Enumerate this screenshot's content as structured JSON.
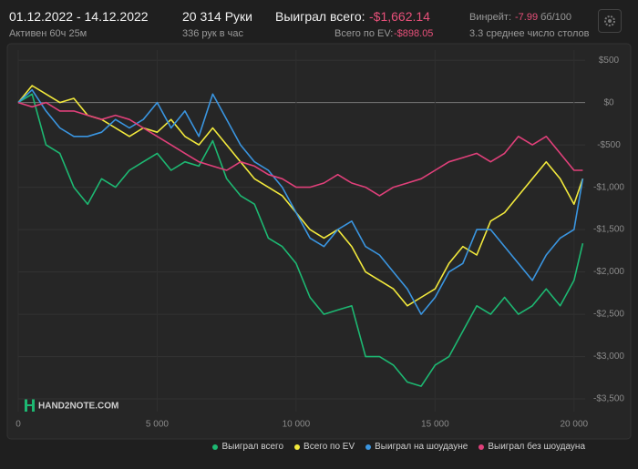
{
  "header": {
    "dates": "01.12.2022 - 14.12.2022",
    "active": "Активен 60ч 25м",
    "hands": "20 314 Руки",
    "rate": "336 рук в час",
    "won_label": "Выиграл всего:",
    "won_value": "-$1,662.14",
    "ev_label": "Всего по EV:",
    "ev_value": "-$898.05",
    "winrate_label": "Винрейт:",
    "winrate_value": "-7.99",
    "winrate_unit": "бб/100",
    "tables": "3.3 среднее число столов",
    "watermark": "HAND2NOTE.COM"
  },
  "chart_data": {
    "type": "line",
    "x": [
      0,
      500,
      1000,
      1500,
      2000,
      2500,
      3000,
      3500,
      4000,
      4500,
      5000,
      5500,
      6000,
      6500,
      7000,
      7500,
      8000,
      8500,
      9000,
      9500,
      10000,
      10500,
      11000,
      11500,
      12000,
      12500,
      13000,
      13500,
      14000,
      14500,
      15000,
      15500,
      16000,
      16500,
      17000,
      17500,
      18000,
      18500,
      19000,
      19500,
      20000,
      20314
    ],
    "series": [
      {
        "name": "Выиграл всего",
        "color": "#1db872",
        "values": [
          0,
          100,
          -500,
          -600,
          -1000,
          -1200,
          -900,
          -1000,
          -800,
          -700,
          -600,
          -800,
          -700,
          -750,
          -450,
          -900,
          -1100,
          -1200,
          -1600,
          -1700,
          -1900,
          -2300,
          -2500,
          -2450,
          -2400,
          -3000,
          -3000,
          -3100,
          -3300,
          -3350,
          -3100,
          -3000,
          -2700,
          -2400,
          -2500,
          -2300,
          -2500,
          -2400,
          -2200,
          -2400,
          -2100,
          -1662.14
        ]
      },
      {
        "name": "Всего по EV",
        "color": "#f2e93c",
        "values": [
          0,
          200,
          100,
          0,
          50,
          -150,
          -200,
          -300,
          -400,
          -300,
          -350,
          -200,
          -400,
          -500,
          -300,
          -500,
          -700,
          -900,
          -1000,
          -1100,
          -1300,
          -1500,
          -1600,
          -1500,
          -1700,
          -2000,
          -2100,
          -2200,
          -2400,
          -2300,
          -2200,
          -1900,
          -1700,
          -1800,
          -1400,
          -1300,
          -1100,
          -900,
          -700,
          -900,
          -1200,
          -898.05
        ]
      },
      {
        "name": "Выиграл на шоудауне",
        "color": "#3a95e0",
        "values": [
          0,
          150,
          -100,
          -300,
          -400,
          -400,
          -350,
          -200,
          -300,
          -200,
          0,
          -300,
          -100,
          -400,
          100,
          -200,
          -500,
          -700,
          -800,
          -1000,
          -1300,
          -1600,
          -1700,
          -1500,
          -1400,
          -1700,
          -1800,
          -2000,
          -2200,
          -2500,
          -2300,
          -2000,
          -1900,
          -1500,
          -1500,
          -1700,
          -1900,
          -2100,
          -1800,
          -1600,
          -1500,
          -900
        ]
      },
      {
        "name": "Выиграл без шоудауна",
        "color": "#e0407a",
        "values": [
          0,
          -50,
          0,
          -100,
          -100,
          -150,
          -200,
          -150,
          -200,
          -300,
          -400,
          -500,
          -600,
          -700,
          -750,
          -800,
          -700,
          -750,
          -850,
          -900,
          -1000,
          -1000,
          -950,
          -850,
          -950,
          -1000,
          -1100,
          -1000,
          -950,
          -900,
          -800,
          -700,
          -650,
          -600,
          -700,
          -600,
          -400,
          -500,
          -400,
          -600,
          -800,
          -800
        ]
      }
    ],
    "xlim": [
      0,
      20400
    ],
    "ylim": [
      -3650,
      620
    ],
    "xticks": [
      0,
      {
        "value": 5000,
        "label": "5 000"
      },
      {
        "value": 10000,
        "label": "10 000"
      },
      {
        "value": 15000,
        "label": "15 000"
      },
      {
        "value": 20000,
        "label": "20 000"
      }
    ],
    "yticks": [
      {
        "value": 500,
        "label": "$500"
      },
      {
        "value": 0,
        "label": "$0"
      },
      {
        "value": -500,
        "label": "-$500"
      },
      {
        "value": -1000,
        "label": "-$1,000"
      },
      {
        "value": -1500,
        "label": "-$1,500"
      },
      {
        "value": -2000,
        "label": "-$2,000"
      },
      {
        "value": -2500,
        "label": "-$2,500"
      },
      {
        "value": -3000,
        "label": "-$3,000"
      },
      {
        "value": -3500,
        "label": "-$3,500"
      }
    ],
    "grid": true
  }
}
